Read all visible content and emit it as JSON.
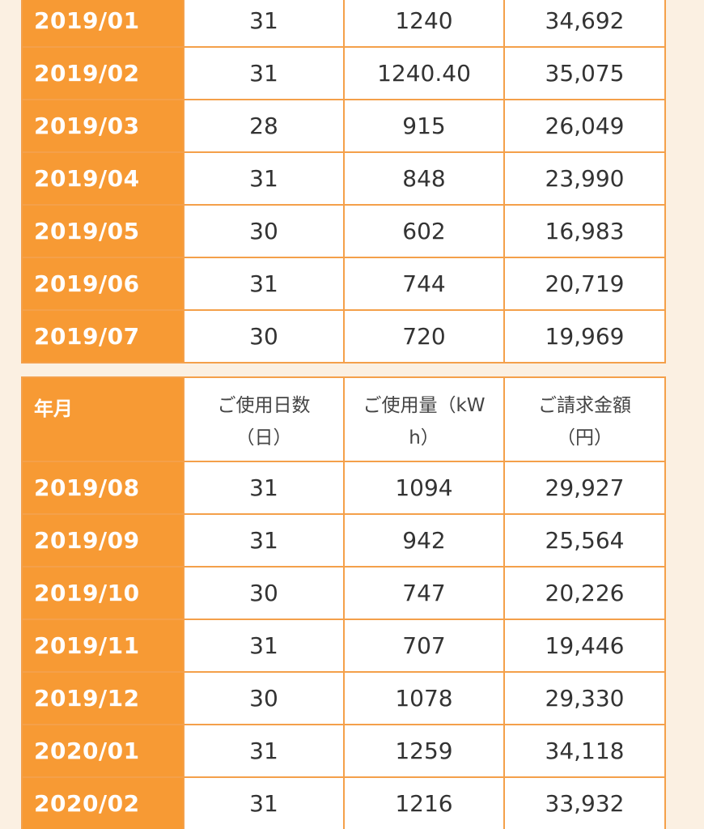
{
  "table_top": {
    "rows": [
      {
        "month": "2019/01",
        "days": "31",
        "kwh": "1240",
        "amount": "34,692"
      },
      {
        "month": "2019/02",
        "days": "31",
        "kwh": "1240.40",
        "amount": "35,075"
      },
      {
        "month": "2019/03",
        "days": "28",
        "kwh": "915",
        "amount": "26,049"
      },
      {
        "month": "2019/04",
        "days": "31",
        "kwh": "848",
        "amount": "23,990"
      },
      {
        "month": "2019/05",
        "days": "30",
        "kwh": "602",
        "amount": "16,983"
      },
      {
        "month": "2019/06",
        "days": "31",
        "kwh": "744",
        "amount": "20,719"
      },
      {
        "month": "2019/07",
        "days": "30",
        "kwh": "720",
        "amount": "19,969"
      }
    ]
  },
  "table_bottom": {
    "headers": {
      "month": "年月",
      "days": "ご使用日数（日）",
      "kwh": "ご使用量（kWh）",
      "amount": "ご請求金額（円）"
    },
    "rows": [
      {
        "month": "2019/08",
        "days": "31",
        "kwh": "1094",
        "amount": "29,927"
      },
      {
        "month": "2019/09",
        "days": "31",
        "kwh": "942",
        "amount": "25,564"
      },
      {
        "month": "2019/10",
        "days": "30",
        "kwh": "747",
        "amount": "20,226"
      },
      {
        "month": "2019/11",
        "days": "31",
        "kwh": "707",
        "amount": "19,446"
      },
      {
        "month": "2019/12",
        "days": "30",
        "kwh": "1078",
        "amount": "29,330"
      },
      {
        "month": "2020/01",
        "days": "31",
        "kwh": "1259",
        "amount": "34,118"
      },
      {
        "month": "2020/02",
        "days": "31",
        "kwh": "1216",
        "amount": "33,932"
      }
    ]
  },
  "colors": {
    "header_orange": "#f79a34",
    "border_orange": "#f4a04a",
    "page_background": "#fbf0e2",
    "cell_background": "#ffffff",
    "text_dark": "#333333"
  }
}
